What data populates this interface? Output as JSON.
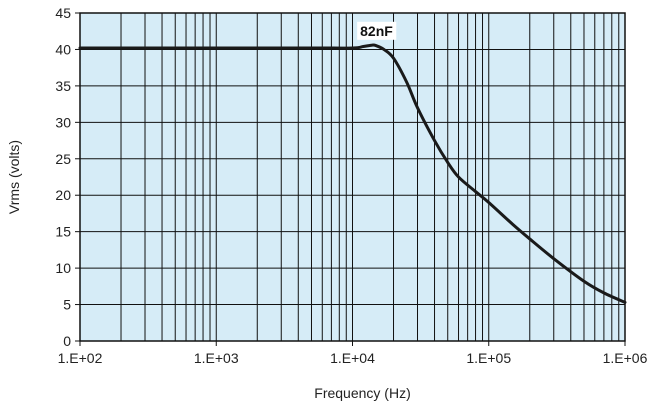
{
  "chart_data": {
    "type": "line",
    "xscale": "log",
    "xlabel": "Frequency (Hz)",
    "ylabel": "Vrms (volts)",
    "xlim": [
      100,
      1000000
    ],
    "ylim": [
      0,
      45
    ],
    "grid": true,
    "x_tick_labels": [
      "1.E+02",
      "1.E+03",
      "1.E+04",
      "1.E+05",
      "1.E+06"
    ],
    "y_tick_labels": [
      "0",
      "5",
      "10",
      "15",
      "20",
      "25",
      "30",
      "35",
      "40",
      "45"
    ],
    "colors": {
      "plot_background": "#d6ecf7",
      "line": "#1a1a1a",
      "grid": "#111111"
    },
    "series": [
      {
        "x": [
          100,
          1000,
          5000,
          10000,
          12000,
          14000,
          15000,
          17000,
          20000,
          25000,
          30000,
          40000,
          50000,
          60000,
          80000,
          100000,
          150000,
          200000,
          300000,
          500000,
          700000,
          1000000
        ],
        "y": [
          40.2,
          40.2,
          40.2,
          40.2,
          40.4,
          40.6,
          40.5,
          40.0,
          38.8,
          35.5,
          32.0,
          27.5,
          24.5,
          22.5,
          20.5,
          19.0,
          16.0,
          14.0,
          11.3,
          8.2,
          6.6,
          5.3
        ]
      }
    ],
    "annotations": [
      {
        "text": "82nF",
        "x": 15000,
        "y": 40.5
      }
    ]
  }
}
